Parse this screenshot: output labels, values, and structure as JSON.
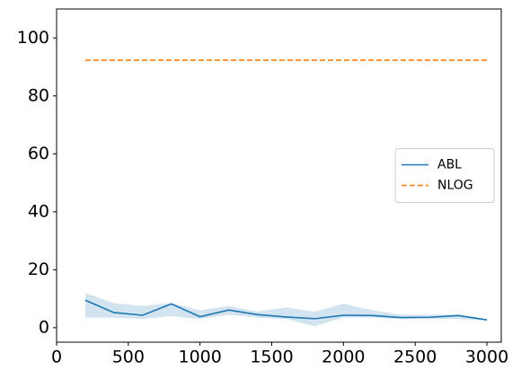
{
  "chart_data": {
    "type": "line",
    "x": [
      200,
      400,
      600,
      800,
      1000,
      1200,
      1400,
      1600,
      1800,
      2000,
      2200,
      2400,
      2600,
      2800,
      3000
    ],
    "series": [
      {
        "name": "ABL",
        "color": "#1f77b4",
        "linestyle": "solid",
        "values": [
          9.5,
          5.2,
          4.3,
          8.2,
          3.8,
          6.1,
          4.5,
          3.7,
          3.1,
          4.3,
          4.2,
          3.5,
          3.6,
          4.2,
          2.7
        ],
        "band": {
          "color": "#1f77b4",
          "upper": [
            12,
            8.5,
            7.5,
            8.5,
            6,
            7.5,
            5.5,
            7,
            5.5,
            8.3,
            6,
            4.5,
            4.5,
            4.5,
            3
          ],
          "lower": [
            3.5,
            3.5,
            3,
            4,
            3,
            4.5,
            3.5,
            3,
            0.5,
            3.5,
            3.5,
            3,
            3,
            3,
            2.5
          ]
        }
      },
      {
        "name": "NLOG",
        "color": "#ff7f0e",
        "linestyle": "dashed",
        "values": [
          92.3,
          92.3,
          92.3,
          92.3,
          92.3,
          92.3,
          92.3,
          92.3,
          92.3,
          92.3,
          92.3,
          92.3,
          92.3,
          92.3,
          92.3
        ]
      }
    ],
    "xlim": [
      0,
      3100
    ],
    "xticks": [
      0,
      500,
      1000,
      1500,
      2000,
      2500,
      3000
    ],
    "ylim": [
      -5,
      110
    ],
    "yticks": [
      0,
      20,
      40,
      60,
      80,
      100
    ],
    "grid": false,
    "legend": "center right"
  }
}
